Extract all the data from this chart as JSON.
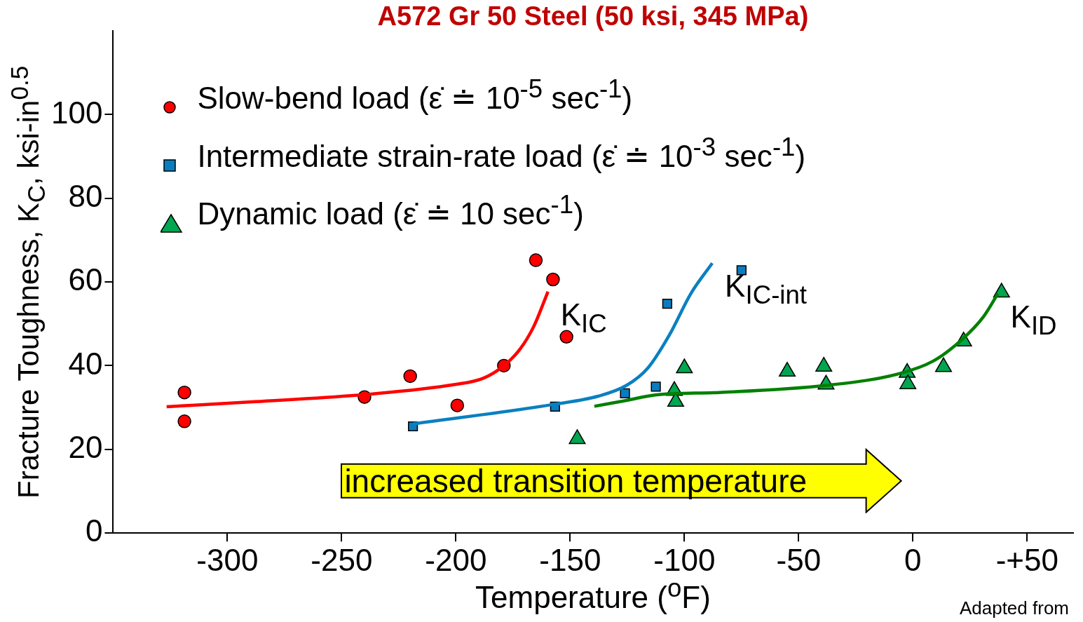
{
  "chart_data": {
    "type": "scatter",
    "title": "A572 Gr 50 Steel (50 ksi, 345 MPa)",
    "xlabel": "Temperature ($^{o}$F)",
    "ylabel": "Fracture Toughness, K$_{C}$, ksi-in$^{0.5}$",
    "xlim": [
      -350,
      70
    ],
    "xticks": [
      -300,
      -250,
      -200,
      -150,
      -100,
      -50,
      0,
      {
        "value": 50,
        "label": "-+50"
      }
    ],
    "ylim": [
      0,
      120
    ],
    "yticks": [
      0,
      20,
      40,
      60,
      80,
      100
    ],
    "grid": false,
    "legend": "top left",
    "series": [
      {
        "name": "Slow-bend load (ε̇ ≐ 10$^{-5}$ sec$^{-1}$)",
        "marker": "circle",
        "color": "#ff0000",
        "x": [
          -318.8,
          -318.8,
          -240,
          -220,
          -199.4,
          -179,
          -165,
          -157.5,
          -151.6
        ],
        "values": [
          33.6,
          26.7,
          32.5,
          37.5,
          30.5,
          40,
          65.2,
          60.6,
          46.9
        ]
      },
      {
        "name": "Intermediate strain-rate load (ε̇ ≐ 10$^{-3}$ sec$^{-1}$)",
        "marker": "square",
        "color": "#0a7dbf",
        "x": [
          -218.8,
          -156.6,
          -126,
          -112.5,
          -107.5,
          -75
        ],
        "values": [
          25.5,
          30.2,
          33.4,
          35,
          54.8,
          62.8
        ]
      },
      {
        "name": "Dynamic load (ε̇ ≐ 10 sec$^{-1}$)",
        "marker": "triangle",
        "color": "#00a650",
        "x": [
          -146.9,
          -104.4,
          -103.8,
          -100,
          -55,
          -39,
          -38,
          -2.5,
          -2.2,
          13.4,
          22.2,
          38.8
        ],
        "values": [
          22.5,
          34,
          31.4,
          39.4,
          38.6,
          39.8,
          35.5,
          38.3,
          35.6,
          39.7,
          45.8,
          57.5
        ]
      },
      {
        "type": "line",
        "marker": "none",
        "line_style": "solid",
        "color": "#ff0000",
        "x": [
          -326.6,
          -287.8,
          -240,
          -200.3,
          -188,
          -179,
          -172,
          -165.9,
          -159.7
        ],
        "values": [
          30.2,
          31.4,
          33.1,
          35.5,
          37,
          40,
          43.9,
          49.4,
          57.7
        ]
      },
      {
        "type": "line",
        "marker": "none",
        "line_style": "solid",
        "color": "#0a80c0",
        "x": [
          -218.8,
          -156.6,
          -137.8,
          -125.3,
          -115.9,
          -106.6,
          -97.2,
          -87.8
        ],
        "values": [
          26.1,
          30.8,
          32.7,
          35.3,
          39.5,
          47.3,
          57.2,
          64.5
        ]
      },
      {
        "type": "line",
        "marker": "none",
        "line_style": "solid",
        "color": "#008000",
        "x": [
          -139.4,
          -125.3,
          -112.8,
          -84.7,
          -37.8,
          -6.6,
          8.9,
          21.6,
          30.9,
          37.2
        ],
        "values": [
          30.3,
          31.7,
          33,
          33.6,
          35.3,
          38,
          41.1,
          46.3,
          51.7,
          57.2
        ]
      }
    ],
    "annotations": [
      "K$_{IC}$",
      "K$_{IC-int}$",
      "K$_{ID}$",
      "increased transition temperature",
      "Adapted from"
    ]
  }
}
